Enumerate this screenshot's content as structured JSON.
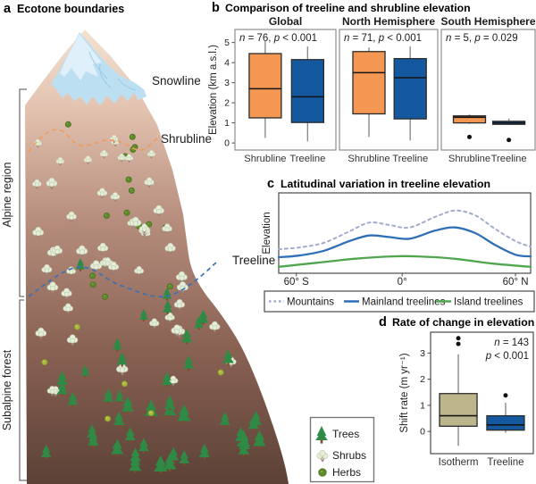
{
  "panels": {
    "a": {
      "label": "a",
      "title": "Ecotone boundaries",
      "zone_labels": {
        "snowline": "Snowline",
        "shrubline": "Shrubline",
        "treeline": "Treeline"
      },
      "region_labels": {
        "alpine": "Alpine region",
        "subalpine": "Subalpine forest"
      },
      "legend": [
        {
          "label": "Trees"
        },
        {
          "label": "Shrubs"
        },
        {
          "label": "Herbs"
        }
      ]
    },
    "b": {
      "label": "b",
      "title": "Comparison of treeline and shrubline elevation"
    },
    "c": {
      "label": "c",
      "title": "Latitudinal variation in treeline elevation"
    },
    "d": {
      "label": "d",
      "title": "Rate of change in elevation"
    }
  },
  "colors": {
    "shrubline_box": "#F3975299",
    "shrubline_box_fill": "#F39752",
    "treeline_box_fill": "#14589F",
    "isotherm_box_fill": "#BDB68C",
    "mountains_line": "#A3ABCD",
    "mainland_line": "#2F6FB7",
    "island_line": "#4FA64F",
    "shrubline_dash": "#F09B5B",
    "treeline_dash": "#3B72B3"
  },
  "chart_data": [
    {
      "id": "b",
      "type": "boxplot",
      "title": "Comparison of treeline and shrubline elevation",
      "ylabel": "Elevation (km a.s.l.)",
      "ylim": [
        -0.35,
        5.65
      ],
      "yticks": [
        0,
        1,
        2,
        3,
        4,
        5
      ],
      "subplots": [
        {
          "title": "Global",
          "annotation": "n = 76, p < 0.001",
          "boxes": [
            {
              "category": "Shrubline",
              "whisker_low": 0.25,
              "q1": 1.25,
              "median": 2.7,
              "q3": 4.45,
              "whisker_high": 5.1,
              "outliers": [],
              "color": "#F39752"
            },
            {
              "category": "Treeline",
              "whisker_low": 0.08,
              "q1": 1.02,
              "median": 2.3,
              "q3": 4.15,
              "whisker_high": 4.8,
              "outliers": [],
              "color": "#14589F"
            }
          ]
        },
        {
          "title": "North Hemisphere",
          "annotation": "n = 71, p < 0.001",
          "boxes": [
            {
              "category": "Shrubline",
              "whisker_low": 0.3,
              "q1": 1.45,
              "median": 3.5,
              "q3": 4.55,
              "whisker_high": 4.75,
              "outliers": [],
              "color": "#F39752"
            },
            {
              "category": "Treeline",
              "whisker_low": 0.12,
              "q1": 1.2,
              "median": 3.25,
              "q3": 4.2,
              "whisker_high": 4.8,
              "outliers": [],
              "color": "#14589F"
            }
          ]
        },
        {
          "title": "South Hemisphere",
          "annotation": "n = 5, p = 0.029",
          "boxes": [
            {
              "category": "Shrubline",
              "whisker_low": 0.95,
              "q1": 1.0,
              "median": 1.28,
              "q3": 1.35,
              "whisker_high": 1.42,
              "outliers": [
                0.3
              ],
              "color": "#F39752"
            },
            {
              "category": "Treeline",
              "whisker_low": 0.9,
              "q1": 0.93,
              "median": 1.0,
              "q3": 1.08,
              "whisker_high": 1.22,
              "outliers": [
                0.15
              ],
              "color": "#14589F"
            }
          ]
        }
      ]
    },
    {
      "id": "c",
      "type": "line",
      "title": "Latitudinal variation in treeline elevation",
      "ylabel": "Elevation",
      "xticks": [
        {
          "pos": 0.07,
          "label": "60° S"
        },
        {
          "pos": 0.49,
          "label": "0°"
        },
        {
          "pos": 0.94,
          "label": "60° N"
        }
      ],
      "series": [
        {
          "name": "Mountains",
          "style": "dashed",
          "color": "#A3ABCD",
          "points": [
            [
              0,
              0.3
            ],
            [
              0.08,
              0.32
            ],
            [
              0.18,
              0.38
            ],
            [
              0.28,
              0.52
            ],
            [
              0.36,
              0.63
            ],
            [
              0.44,
              0.6
            ],
            [
              0.52,
              0.57
            ],
            [
              0.62,
              0.7
            ],
            [
              0.7,
              0.78
            ],
            [
              0.78,
              0.72
            ],
            [
              0.86,
              0.55
            ],
            [
              0.94,
              0.4
            ],
            [
              1,
              0.33
            ]
          ]
        },
        {
          "name": "Mainland treelines",
          "style": "solid",
          "color": "#2F6FB7",
          "points": [
            [
              0,
              0.2
            ],
            [
              0.08,
              0.22
            ],
            [
              0.18,
              0.28
            ],
            [
              0.28,
              0.4
            ],
            [
              0.36,
              0.47
            ],
            [
              0.44,
              0.45
            ],
            [
              0.52,
              0.43
            ],
            [
              0.62,
              0.53
            ],
            [
              0.7,
              0.57
            ],
            [
              0.78,
              0.5
            ],
            [
              0.86,
              0.35
            ],
            [
              0.94,
              0.23
            ],
            [
              1,
              0.21
            ]
          ]
        },
        {
          "name": "Island treelines",
          "style": "solid",
          "color": "#4FA64F",
          "points": [
            [
              0,
              0.08
            ],
            [
              0.15,
              0.13
            ],
            [
              0.3,
              0.18
            ],
            [
              0.45,
              0.21
            ],
            [
              0.55,
              0.21
            ],
            [
              0.7,
              0.18
            ],
            [
              0.85,
              0.12
            ],
            [
              1,
              0.08
            ]
          ]
        }
      ],
      "legend_position": "bottom"
    },
    {
      "id": "d",
      "type": "boxplot",
      "title": "Rate of change in elevation",
      "ylabel": "Shift rate (m yr⁻¹)",
      "annotation_lines": [
        "n = 143",
        "p < 0.001"
      ],
      "ylim": [
        -0.85,
        3.8
      ],
      "yticks": [
        0,
        1,
        2,
        3
      ],
      "boxes": [
        {
          "category": "Isotherm",
          "whisker_low": -0.55,
          "q1": 0.2,
          "median": 0.6,
          "q3": 1.45,
          "whisker_high": 2.95,
          "outliers": [
            3.35,
            3.57
          ],
          "color": "#BDB68C"
        },
        {
          "category": "Treeline",
          "whisker_low": -0.05,
          "q1": 0.05,
          "median": 0.25,
          "q3": 0.6,
          "whisker_high": 1.1,
          "outliers": [
            1.38
          ],
          "color": "#14589F"
        }
      ]
    }
  ]
}
